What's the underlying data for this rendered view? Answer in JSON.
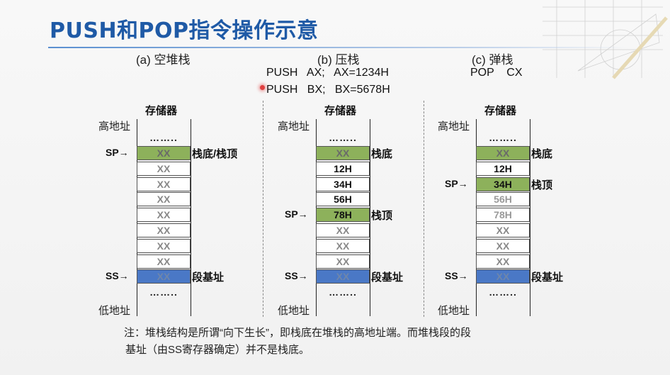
{
  "slide": {
    "title": "PUSH和POP指令操作示意",
    "note_line1": "注：堆栈结构是所谓“向下生长”，即栈底在堆栈的高地址端。而堆栈段的段",
    "note_line2": "基址（由SS寄存器确定）并不是栈底。"
  },
  "panels": [
    {
      "caption": "(a) 空堆栈",
      "instructions": [],
      "mem_title": "存储器",
      "high_label": "高地址",
      "low_label": "低地址",
      "dots": "……..",
      "cells": [
        "XX",
        "XX",
        "XX",
        "XX",
        "XX",
        "XX",
        "XX",
        "XX",
        "XX"
      ],
      "sp_label": "SP→",
      "ss_label": "SS→",
      "top_side": "栈底/栈顶",
      "sp_side": "",
      "ss_side": "段基址"
    },
    {
      "caption": "(b) 压栈",
      "instructions": [
        "PUSH   AX;   AX=1234H",
        "PUSH   BX;   BX=5678H"
      ],
      "mem_title": "存储器",
      "high_label": "高地址",
      "low_label": "低地址",
      "dots": "……..",
      "cells": [
        "XX",
        "12H",
        "34H",
        "56H",
        "78H",
        "XX",
        "XX",
        "XX",
        "XX"
      ],
      "sp_label": "SP→",
      "ss_label": "SS→",
      "top_side": "栈底",
      "sp_side": "栈顶",
      "ss_side": "段基址"
    },
    {
      "caption": "(c) 弹栈",
      "instructions": [
        "POP    CX"
      ],
      "mem_title": "存储器",
      "high_label": "高地址",
      "low_label": "低地址",
      "dots": "……..",
      "cells": [
        "XX",
        "12H",
        "34H",
        "56H",
        "78H",
        "XX",
        "XX",
        "XX",
        "XX"
      ],
      "sp_label": "SP→",
      "ss_label": "SS→",
      "top_side": "栈底",
      "sp_side": "栈顶",
      "ss_side": "段基址"
    }
  ],
  "colors": {
    "title": "#1f5aa6",
    "green_cell": "#8db15b",
    "blue_cell": "#4a78c6"
  }
}
